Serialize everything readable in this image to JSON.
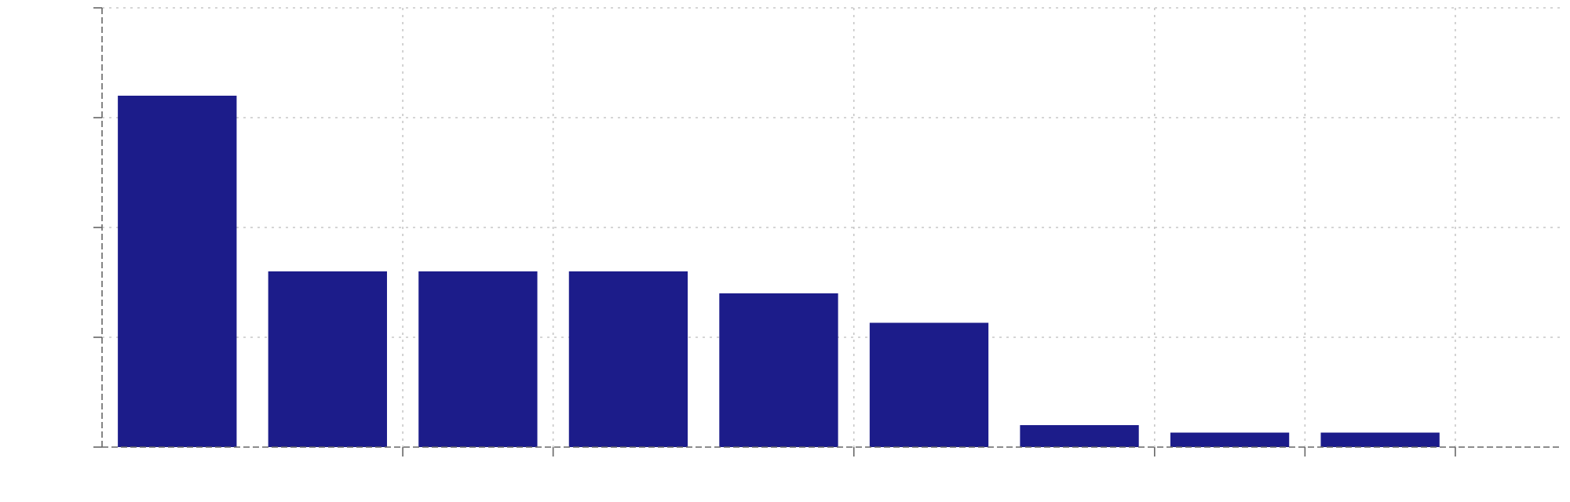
{
  "chart_data": {
    "type": "bar",
    "values": [
      8.0,
      4.0,
      4.0,
      4.0,
      3.5,
      2.83,
      0.5,
      0.33,
      0.33
    ],
    "ylim": [
      0,
      10
    ],
    "y_ticks": [
      0,
      2.5,
      5,
      7.5,
      10
    ],
    "x_tick_positions": [
      1.5,
      2.5,
      4.5,
      6.5,
      7.5,
      8.5
    ],
    "xlim": [
      -0.5,
      9.2
    ],
    "grid": true,
    "bar_color": "#1c1c8a"
  }
}
